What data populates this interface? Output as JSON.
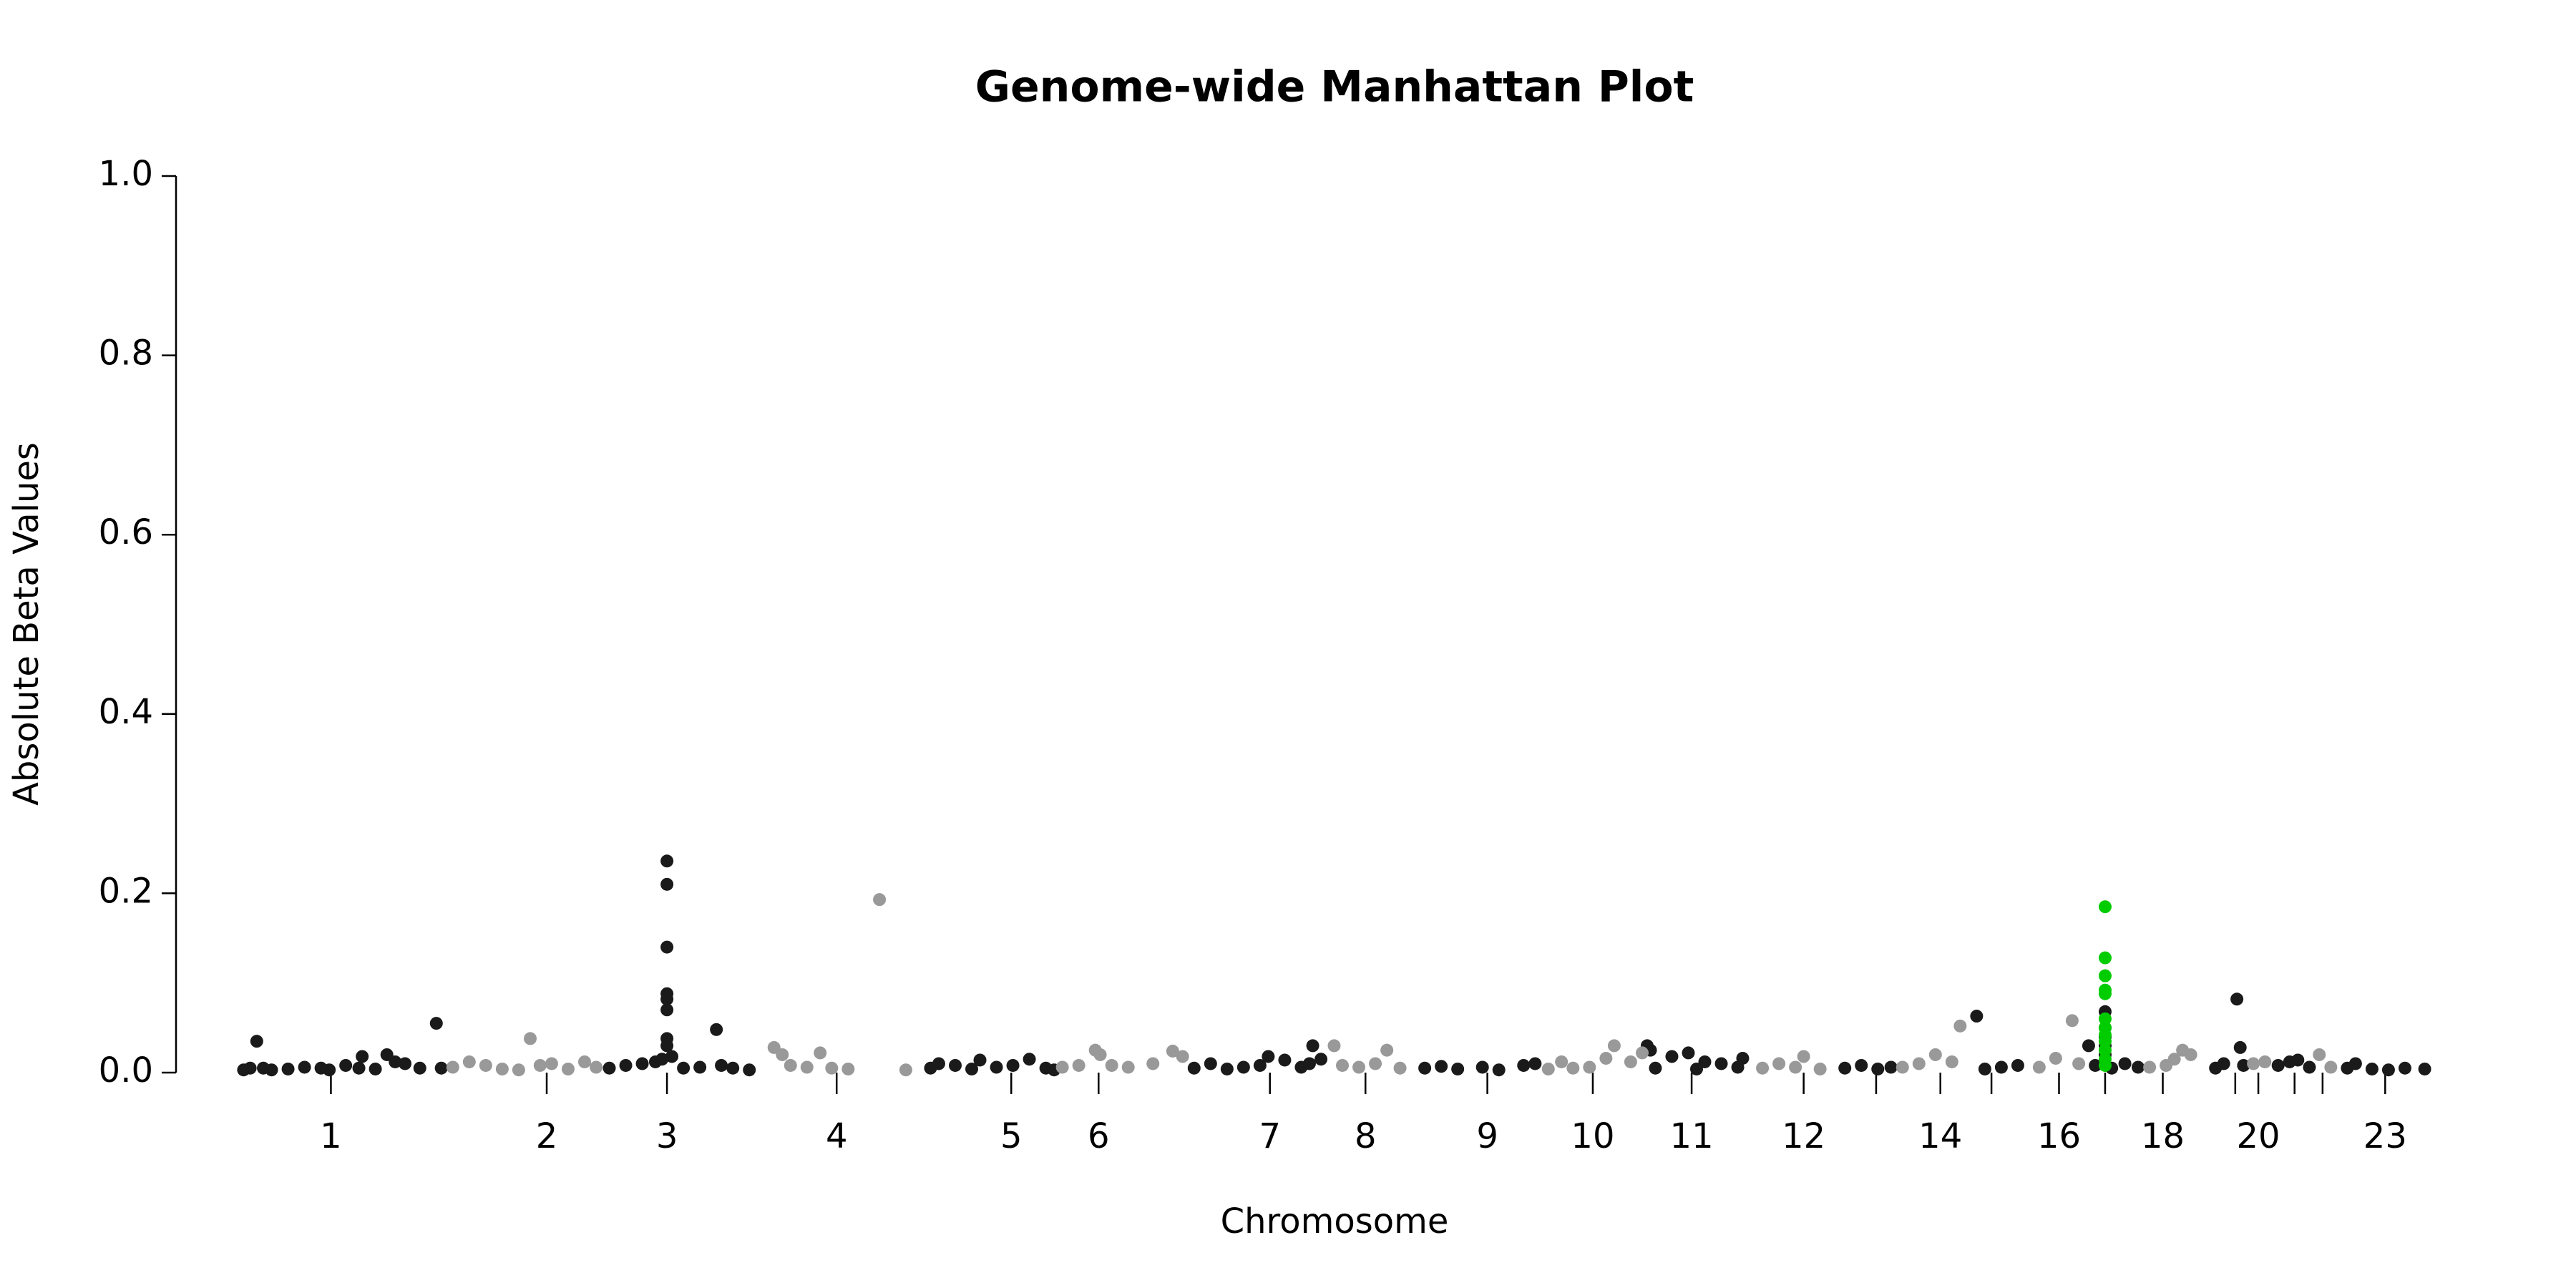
{
  "chart_data": {
    "type": "scatter",
    "title": "Genome-wide Manhattan Plot",
    "x_label": "Chromosome",
    "y_label": "Absolute Beta Values",
    "xlim": [
      0,
      1340
    ],
    "ylim": [
      0,
      1
    ],
    "yticks": [
      {
        "value": 0,
        "label": "0.0"
      },
      0.2,
      0.4,
      0.6,
      0.8,
      {
        "value": 1,
        "label": "1.0"
      }
    ],
    "xticks": [
      {
        "value": 61,
        "label": "1"
      },
      {
        "value": 192,
        "label": "2"
      },
      {
        "value": 265,
        "label": "3"
      },
      {
        "value": 368,
        "label": "4"
      },
      {
        "value": 474,
        "label": "5"
      },
      {
        "value": 527,
        "label": "6"
      },
      {
        "value": 631,
        "label": "7"
      },
      {
        "value": 689,
        "label": "8"
      },
      {
        "value": 763,
        "label": "9"
      },
      {
        "value": 827,
        "label": "10"
      },
      {
        "value": 887,
        "label": "11"
      },
      {
        "value": 955,
        "label": "12"
      },
      {
        "value": 999,
        "label": null
      },
      {
        "value": 1038,
        "label": "14"
      },
      {
        "value": 1069,
        "label": null
      },
      {
        "value": 1110,
        "label": "16"
      },
      {
        "value": 1138,
        "label": null
      },
      {
        "value": 1173,
        "label": "18"
      },
      {
        "value": 1217,
        "label": null
      },
      {
        "value": 1231,
        "label": "20"
      },
      {
        "value": 1253,
        "label": null
      },
      {
        "value": 1270,
        "label": null
      },
      {
        "value": 1308,
        "label": "23"
      }
    ],
    "series": [
      {
        "color": "#1a1a1a",
        "x": [
          8,
          12,
          16,
          20,
          25,
          35,
          45,
          55,
          60,
          70,
          78,
          80,
          88,
          95,
          100,
          106,
          115,
          125,
          128,
          230,
          240,
          250,
          258,
          262,
          265,
          265,
          265,
          265,
          265,
          265,
          265,
          265,
          268,
          275,
          285,
          295,
          298,
          305,
          315,
          425,
          430,
          440,
          450,
          455,
          465,
          475,
          485,
          495,
          500,
          585,
          595,
          605,
          615,
          625,
          630,
          640,
          650,
          655,
          657,
          662,
          725,
          735,
          745,
          760,
          770,
          785,
          792,
          860,
          862,
          865,
          875,
          885,
          890,
          895,
          905,
          915,
          918,
          980,
          990,
          1000,
          1008,
          1060,
          1065,
          1075,
          1085,
          1128,
          1132,
          1138,
          1138,
          1138,
          1138,
          1138,
          1142,
          1150,
          1158,
          1205,
          1210,
          1218,
          1220,
          1222,
          1243,
          1250,
          1255,
          1262,
          1285,
          1290,
          1300,
          1310,
          1320,
          1332
        ],
        "values": [
          0.003,
          0.005,
          0.035,
          0.005,
          0.003,
          0.004,
          0.006,
          0.005,
          0.003,
          0.008,
          0.005,
          0.018,
          0.004,
          0.02,
          0.012,
          0.01,
          0.005,
          0.055,
          0.005,
          0.005,
          0.008,
          0.01,
          0.012,
          0.015,
          0.236,
          0.21,
          0.14,
          0.088,
          0.082,
          0.07,
          0.038,
          0.03,
          0.018,
          0.005,
          0.006,
          0.048,
          0.008,
          0.005,
          0.003,
          0.005,
          0.01,
          0.008,
          0.004,
          0.014,
          0.006,
          0.008,
          0.015,
          0.005,
          0.003,
          0.005,
          0.01,
          0.004,
          0.006,
          0.008,
          0.018,
          0.014,
          0.006,
          0.01,
          0.03,
          0.015,
          0.005,
          0.007,
          0.004,
          0.006,
          0.003,
          0.008,
          0.01,
          0.03,
          0.025,
          0.005,
          0.018,
          0.022,
          0.004,
          0.012,
          0.01,
          0.006,
          0.016,
          0.005,
          0.008,
          0.004,
          0.006,
          0.063,
          0.004,
          0.006,
          0.008,
          0.03,
          0.008,
          0.068,
          0.05,
          0.04,
          0.03,
          0.02,
          0.005,
          0.01,
          0.006,
          0.005,
          0.01,
          0.082,
          0.028,
          0.008,
          0.008,
          0.012,
          0.014,
          0.006,
          0.005,
          0.01,
          0.004,
          0.003,
          0.005,
          0.004
        ]
      },
      {
        "color": "#999999",
        "x": [
          135,
          145,
          155,
          165,
          175,
          182,
          188,
          195,
          205,
          215,
          222,
          330,
          335,
          340,
          350,
          358,
          365,
          375,
          394,
          410,
          505,
          515,
          525,
          528,
          535,
          545,
          560,
          572,
          578,
          670,
          675,
          685,
          695,
          702,
          710,
          800,
          808,
          815,
          825,
          835,
          840,
          850,
          857,
          930,
          940,
          950,
          955,
          965,
          1015,
          1025,
          1035,
          1045,
          1050,
          1098,
          1108,
          1118,
          1122,
          1165,
          1175,
          1180,
          1185,
          1190,
          1228,
          1235,
          1268,
          1275
        ],
        "values": [
          0.006,
          0.012,
          0.008,
          0.004,
          0.003,
          0.038,
          0.008,
          0.01,
          0.004,
          0.012,
          0.006,
          0.028,
          0.02,
          0.008,
          0.006,
          0.022,
          0.005,
          0.004,
          0.193,
          0.003,
          0.006,
          0.008,
          0.025,
          0.02,
          0.008,
          0.006,
          0.01,
          0.024,
          0.018,
          0.03,
          0.008,
          0.006,
          0.01,
          0.025,
          0.005,
          0.004,
          0.012,
          0.005,
          0.006,
          0.016,
          0.03,
          0.012,
          0.022,
          0.005,
          0.01,
          0.006,
          0.018,
          0.004,
          0.006,
          0.01,
          0.02,
          0.012,
          0.052,
          0.006,
          0.016,
          0.058,
          0.01,
          0.006,
          0.008,
          0.015,
          0.025,
          0.02,
          0.01,
          0.012,
          0.02,
          0.006
        ]
      },
      {
        "color": "#00cc00",
        "x": [
          1138,
          1138,
          1138,
          1138,
          1138,
          1138,
          1138,
          1138,
          1138,
          1138,
          1138,
          1138
        ],
        "values": [
          0.185,
          0.128,
          0.108,
          0.092,
          0.088,
          0.06,
          0.05,
          0.042,
          0.035,
          0.025,
          0.015,
          0.008
        ]
      }
    ]
  }
}
